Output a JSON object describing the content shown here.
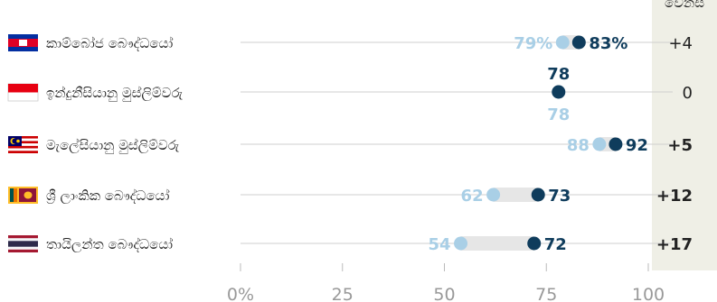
{
  "chart_data": {
    "type": "dot",
    "xlim": [
      0,
      100
    ],
    "x_ticks": [
      0,
      25,
      50,
      75,
      100
    ],
    "x_tick_labels": [
      "0%",
      "25",
      "50",
      "75",
      "100"
    ],
    "diff_header": "වෙනස",
    "colors": {
      "earlier": "#a9cfe6",
      "later": "#0f3c5c",
      "range": "#e6e6e6",
      "axis": "#bbbbbb",
      "row_line": "#cfcfcf",
      "text": "#222222"
    },
    "rows": [
      {
        "label": "කාම්බෝජ බෞද්ධයෝ",
        "flag": "cambodia-flag",
        "earlier": 79,
        "later": 83,
        "earlier_label": "79%",
        "later_label": "83%",
        "diff": "+4",
        "diff_bold": false,
        "label_pos": "side"
      },
      {
        "label": "ඉන්දුනීසියානු මුස්ලිම්වරු",
        "flag": "indonesia-flag",
        "earlier": 78,
        "later": 78,
        "earlier_label": "78",
        "later_label": "78",
        "diff": "0",
        "diff_bold": false,
        "label_pos": "stacked"
      },
      {
        "label": "මැලේසියානු මුස්ලිම්වරු",
        "flag": "malaysia-flag",
        "earlier": 88,
        "later": 92,
        "earlier_label": "88",
        "later_label": "92",
        "diff": "+5",
        "diff_bold": true,
        "label_pos": "side"
      },
      {
        "label": "ශ්‍රී ලාංකික බෞද්ධයෝ",
        "flag": "sri-lanka-flag",
        "earlier": 62,
        "later": 73,
        "earlier_label": "62",
        "later_label": "73",
        "diff": "+12",
        "diff_bold": true,
        "label_pos": "side"
      },
      {
        "label": "තායිලන්ත බෞද්ධයෝ",
        "flag": "thailand-flag",
        "earlier": 54,
        "later": 72,
        "earlier_label": "54",
        "later_label": "72",
        "diff": "+17",
        "diff_bold": true,
        "label_pos": "side"
      }
    ]
  }
}
